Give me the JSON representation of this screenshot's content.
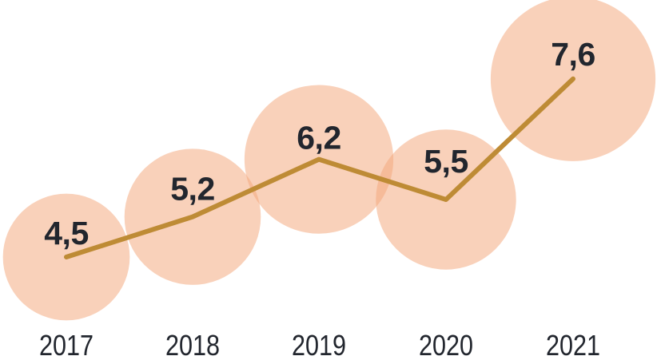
{
  "chart_data": {
    "type": "line",
    "variant": "line-with-proportional-bubbles",
    "categories": [
      "2017",
      "2018",
      "2019",
      "2020",
      "2021"
    ],
    "values": [
      4.5,
      5.2,
      6.2,
      5.5,
      7.6
    ],
    "value_labels": [
      "4,5",
      "5,2",
      "6,2",
      "5,5",
      "7,6"
    ],
    "decimal_separator": ",",
    "legend": "none",
    "grid": false,
    "axes_visible": false,
    "bubble_area_proportional_to_value": true
  },
  "colors": {
    "bubble_fill": "#F4A77A",
    "bubble_opacity": 0.52,
    "line": "#BE8B35",
    "value_text": "#22262E",
    "year_text": "#22262E",
    "background": "#FFFFFF"
  }
}
